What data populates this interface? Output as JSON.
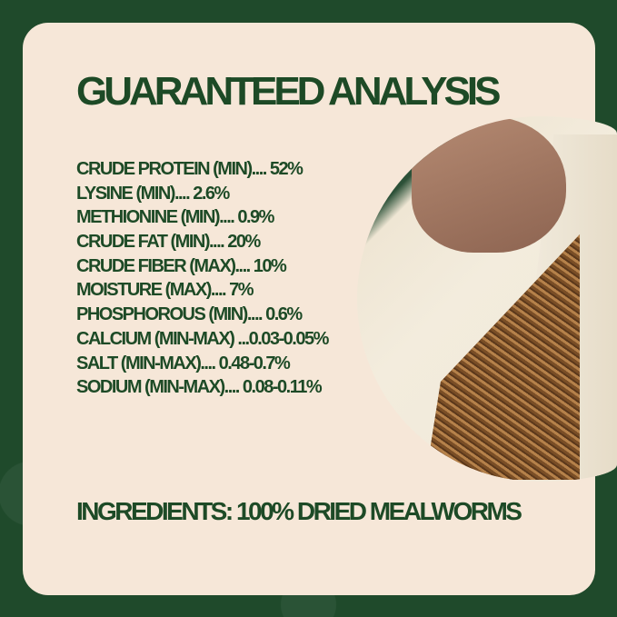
{
  "title": "GUARANTEED ANALYSIS",
  "analysis": [
    "CRUDE PROTEIN (MIN).... 52%",
    "LYSINE (MIN).... 2.6%",
    "METHIONINE (MIN).... 0.9%",
    "CRUDE FAT (MIN).... 20%",
    "CRUDE FIBER (MAX).... 10%",
    "MOISTURE (MAX).... 7%",
    "PHOSPHOROUS (MIN).... 0.6%",
    "CALCIUM (MIN-MAX) ...0.03-0.05%",
    "SALT (MIN-MAX).... 0.48-0.7%",
    "SODIUM (MIN-MAX).... 0.08-0.11%"
  ],
  "ingredients": "INGREDIENTS: 100% DRIED MEALWORMS",
  "colors": {
    "background": "#1f4a2b",
    "card": "#f6e7d8",
    "text": "#1d4a26"
  }
}
